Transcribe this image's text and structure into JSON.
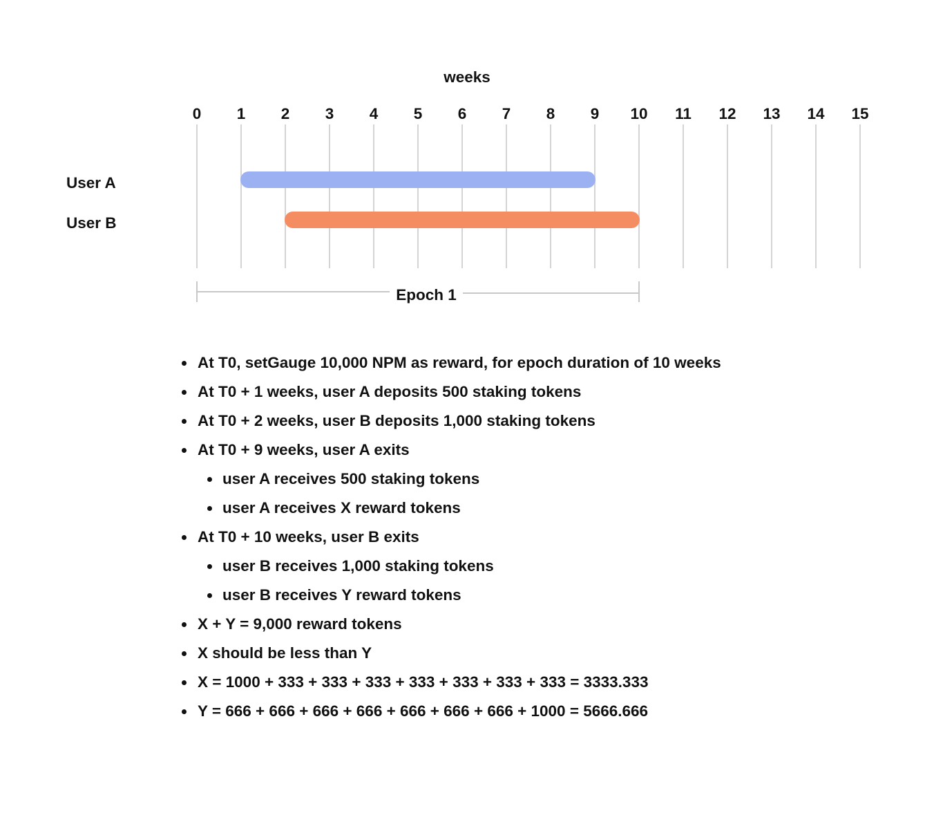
{
  "axis_label": "weeks",
  "ticks": [
    "0",
    "1",
    "2",
    "3",
    "4",
    "5",
    "6",
    "7",
    "8",
    "9",
    "10",
    "11",
    "12",
    "13",
    "14",
    "15"
  ],
  "users": [
    {
      "label": "User A",
      "start_week": 1,
      "end_week": 9,
      "color": "#9bb1f1"
    },
    {
      "label": "User B",
      "start_week": 2,
      "end_week": 10,
      "color": "#f48d62"
    }
  ],
  "epoch": {
    "label": "Epoch 1",
    "start_week": 0,
    "end_week": 10
  },
  "notes": [
    {
      "level": 1,
      "text": "At T0, setGauge 10,000 NPM as reward, for epoch duration of 10 weeks"
    },
    {
      "level": 1,
      "text": "At T0 + 1 weeks, user A deposits 500 staking tokens"
    },
    {
      "level": 1,
      "text": "At T0 + 2 weeks, user B deposits 1,000 staking tokens"
    },
    {
      "level": 1,
      "text": "At T0 + 9 weeks, user A exits"
    },
    {
      "level": 2,
      "text": "user A receives 500 staking tokens"
    },
    {
      "level": 2,
      "text": "user A receives X reward tokens"
    },
    {
      "level": 1,
      "text": "At T0 + 10 weeks, user B exits"
    },
    {
      "level": 2,
      "text": "user B receives 1,000 staking tokens"
    },
    {
      "level": 2,
      "text": "user B receives Y reward tokens"
    },
    {
      "level": 1,
      "text": "X + Y = 9,000 reward tokens"
    },
    {
      "level": 1,
      "text": "X should be less than Y"
    },
    {
      "level": 1,
      "text": "X = 1000 + 333 + 333 + 333 + 333 + 333 + 333 + 333 = 3333.333"
    },
    {
      "level": 1,
      "text": "Y = 666 + 666 + 666 + 666 + 666 + 666 + 666 + 1000 = 5666.666"
    }
  ]
}
